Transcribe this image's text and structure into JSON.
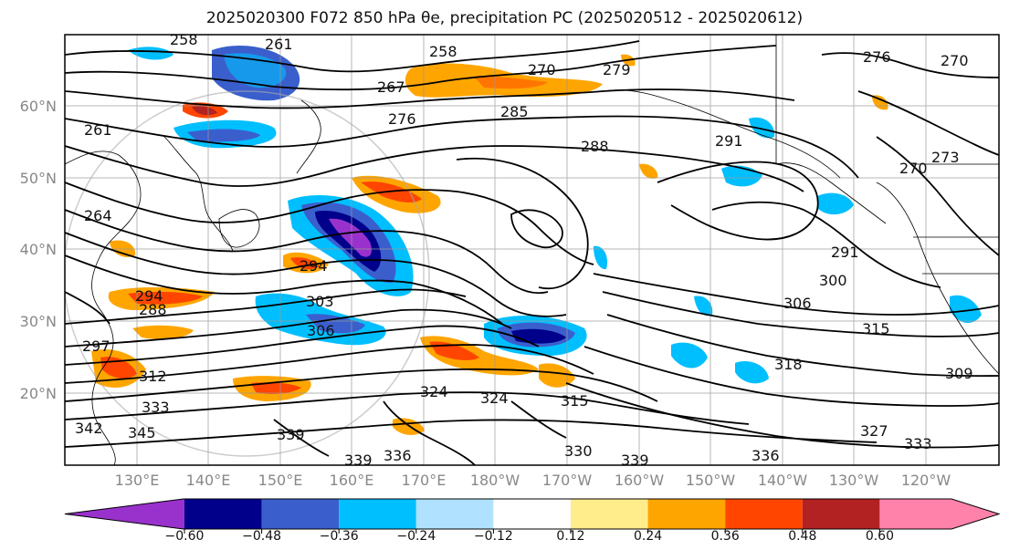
{
  "figure": {
    "title": "2025020300 F072 850 hPa θe, precipitation PC (2025020512 - 2025020612)"
  },
  "map": {
    "lat_labels": [
      "60°N",
      "50°N",
      "40°N",
      "30°N",
      "20°N"
    ],
    "lon_labels": [
      "130°E",
      "140°E",
      "150°E",
      "160°E",
      "170°E",
      "180°W",
      "170°W",
      "160°W",
      "150°W",
      "140°W",
      "130°W",
      "120°W"
    ],
    "contour_labels": [
      "258",
      "261",
      "258",
      "270",
      "279",
      "276",
      "270",
      "267",
      "276",
      "285",
      "288",
      "291",
      "261",
      "264",
      "294",
      "303",
      "306",
      "291",
      "300",
      "306",
      "315",
      "318",
      "309",
      "324",
      "324",
      "315",
      "330",
      "333",
      "342",
      "345",
      "339",
      "339",
      "336",
      "327",
      "333",
      "339",
      "336",
      "288",
      "294",
      "297",
      "312",
      "270",
      "273"
    ]
  },
  "colorbar": {
    "ticks": [
      "−0.60",
      "−0.48",
      "−0.36",
      "−0.24",
      "−0.12",
      "0.12",
      "0.24",
      "0.36",
      "0.48",
      "0.60"
    ],
    "colors": [
      "#9932CC",
      "#00008B",
      "#3A5FCD",
      "#00BFFF",
      "#B0E2FF",
      "#FFFFFF",
      "#FFEC8B",
      "#FFA500",
      "#FF4500",
      "#B22222",
      "#FF82AB"
    ]
  }
}
